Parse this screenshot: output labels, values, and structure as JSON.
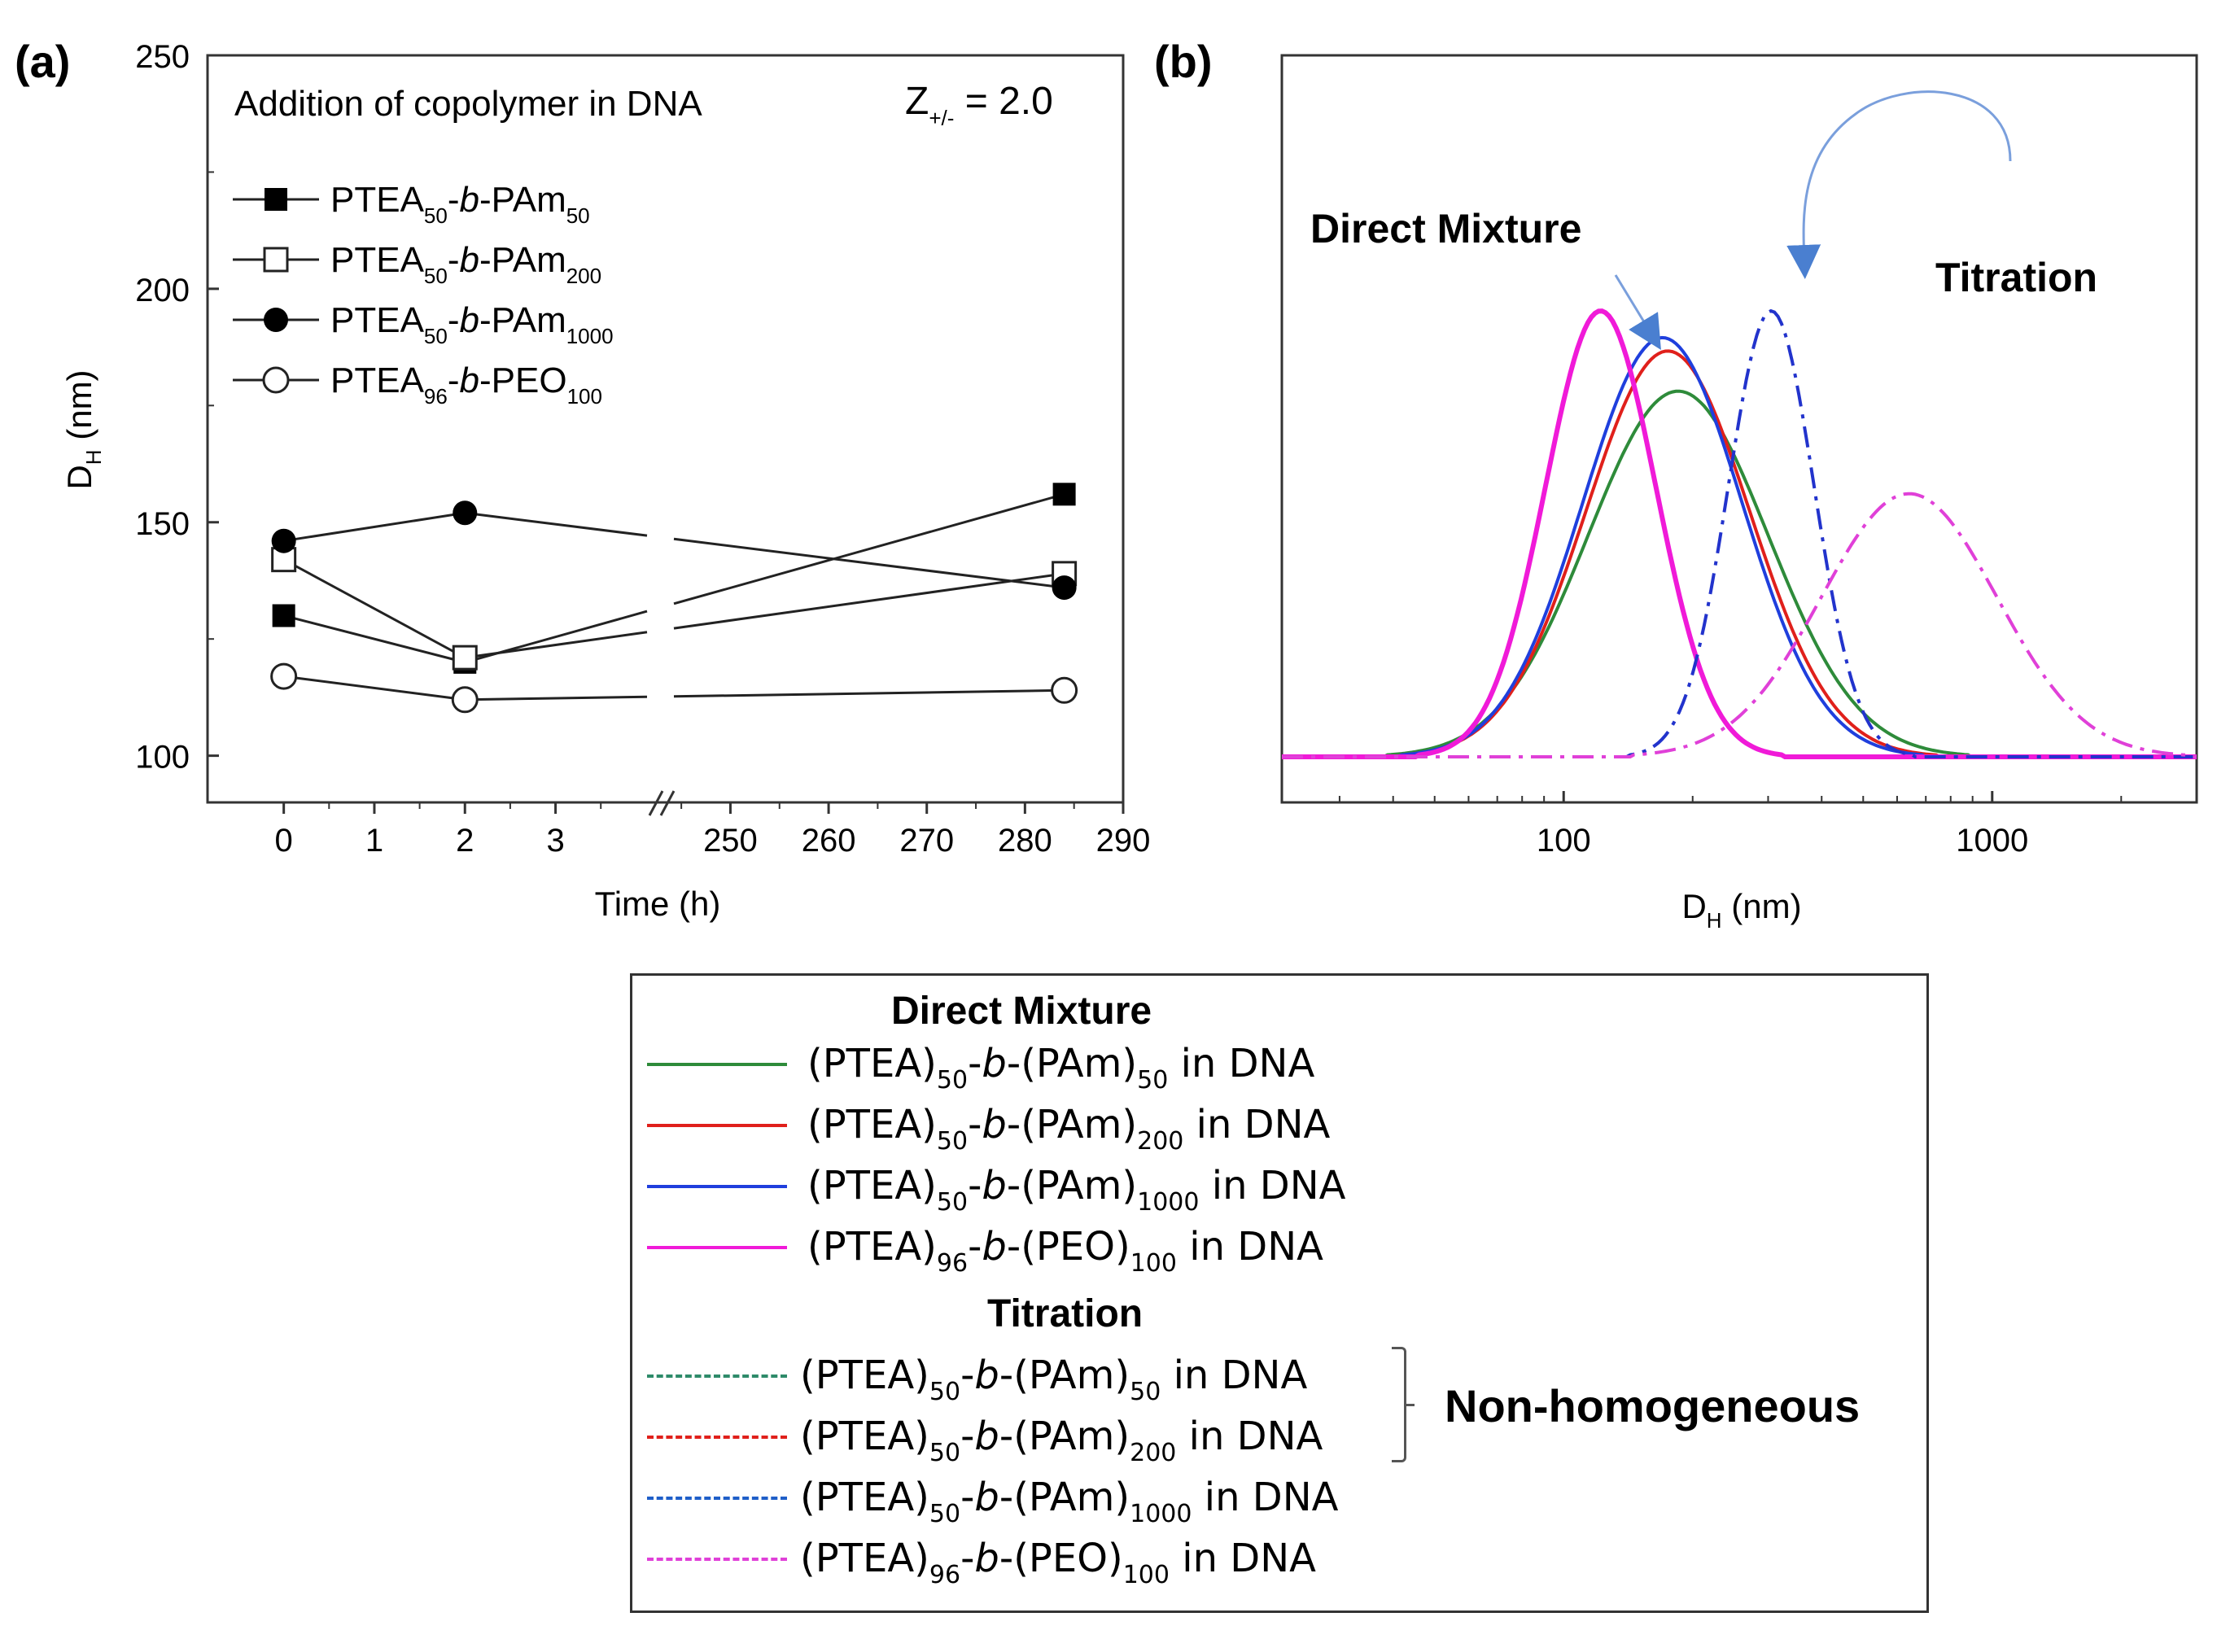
{
  "panel_labels": {
    "a": "(a)",
    "b": "(b)"
  },
  "chart_data": [
    {
      "type": "line",
      "panel": "(a)",
      "annotation": "Addition of copolymer in DNA",
      "ratio_label": {
        "main": "Z",
        "sub": "+/-",
        "rest": " = 2.0"
      },
      "xlabel": "Time (h)",
      "ylabel": {
        "main": "D",
        "sub": "H",
        "rest": " (nm)"
      },
      "ylim": [
        90,
        250
      ],
      "yticks": [
        100,
        150,
        200,
        250
      ],
      "x_segments": [
        {
          "range": [
            -0.5,
            4.1
          ],
          "ticks": [
            0,
            1,
            2,
            3
          ]
        },
        {
          "range": [
            243,
            290
          ],
          "ticks": [
            250,
            260,
            270,
            280,
            290
          ]
        }
      ],
      "axis_break": "//",
      "x": [
        0,
        2,
        284
      ],
      "series": [
        {
          "name": "PTEA50-b-PAm50",
          "label_parts": [
            "PTEA",
            "50",
            "-",
            "b",
            "-PAm",
            "50"
          ],
          "marker": "filled-square",
          "values": [
            130,
            120,
            156
          ]
        },
        {
          "name": "PTEA50-b-PAm200",
          "label_parts": [
            "PTEA",
            "50",
            "-",
            "b",
            "-PAm",
            "200"
          ],
          "marker": "open-square",
          "values": [
            142,
            121,
            139
          ]
        },
        {
          "name": "PTEA50-b-PAm1000",
          "label_parts": [
            "PTEA",
            "50",
            "-",
            "b",
            "-PAm",
            "1000"
          ],
          "marker": "filled-circle",
          "values": [
            146,
            152,
            136
          ]
        },
        {
          "name": "PTEA96-b-PEO100",
          "label_parts": [
            "PTEA",
            "96",
            "-",
            "b",
            "-PEO",
            "100"
          ],
          "marker": "open-circle",
          "values": [
            117,
            112,
            114
          ]
        }
      ]
    },
    {
      "type": "line",
      "panel": "(b)",
      "xscale": "log",
      "xlabel": {
        "main": "D",
        "sub": "H",
        "rest": " (nm)"
      },
      "xlim": [
        22,
        3000
      ],
      "xticks": [
        100,
        1000
      ],
      "annotations": {
        "direct": "Direct Mixture",
        "titration": "Titration"
      },
      "series": [
        {
          "name": "(PTEA)50-b-(PAm)50 in DNA",
          "group": "Direct Mixture",
          "color": "#2e8b3a",
          "style": "solid",
          "peak_x": 185,
          "peak_height": 0.82,
          "width": 0.44
        },
        {
          "name": "(PTEA)50-b-(PAm)200 in DNA",
          "group": "Direct Mixture",
          "color": "#e0201b",
          "style": "solid",
          "peak_x": 175,
          "peak_height": 0.91,
          "width": 0.4
        },
        {
          "name": "(PTEA)50-b-(PAm)1000 in DNA",
          "group": "Direct Mixture",
          "color": "#1f3fdd",
          "style": "solid",
          "peak_x": 170,
          "peak_height": 0.94,
          "width": 0.39
        },
        {
          "name": "(PTEA)96-b-(PEO)100 in DNA",
          "group": "Direct Mixture",
          "color": "#f01ad8",
          "style": "solid",
          "peak_x": 122,
          "peak_height": 1.0,
          "width": 0.27
        },
        {
          "name": "(PTEA)50-b-(PAm)1000 in DNA",
          "group": "Titration",
          "color": "#2233cc",
          "style": "dashdot",
          "peak_x": 305,
          "peak_height": 1.0,
          "width": 0.21
        },
        {
          "name": "(PTEA)96-b-(PEO)100 in DNA",
          "group": "Titration",
          "color": "#e040d8",
          "style": "dashdot",
          "peak_x": 640,
          "peak_height": 0.59,
          "width": 0.43
        }
      ]
    }
  ],
  "legend": {
    "direct_heading": "Direct Mixture",
    "titration_heading": "Titration",
    "non_homogeneous": "Non-homogeneous",
    "direct_items": [
      {
        "color": "#2e8b3a",
        "style": "solid",
        "p1": "(PTEA)",
        "s1": "50",
        "p2": "-",
        "it": "b",
        "p3": "-(PAm)",
        "s2": "50",
        "p4": " in DNA"
      },
      {
        "color": "#e0201b",
        "style": "solid",
        "p1": "(PTEA)",
        "s1": "50",
        "p2": "-",
        "it": "b",
        "p3": "-(PAm)",
        "s2": "200",
        "p4": " in DNA"
      },
      {
        "color": "#1f3fdd",
        "style": "solid",
        "p1": "(PTEA)",
        "s1": "50",
        "p2": "-",
        "it": "b",
        "p3": "-(PAm)",
        "s2": "1000",
        "p4": " in DNA"
      },
      {
        "color": "#f01ad8",
        "style": "solid",
        "p1": "(PTEA)",
        "s1": "96",
        "p2": "-",
        "it": "b",
        "p3": "-(PEO)",
        "s2": "100",
        "p4": " in DNA"
      }
    ],
    "titration_items": [
      {
        "color": "#2e8b6a",
        "style": "dashdot",
        "p1": "(PTEA)",
        "s1": "50",
        "p2": "-",
        "it": "b",
        "p3": "-(PAm)",
        "s2": "50",
        "p4": " in DNA"
      },
      {
        "color": "#e0201b",
        "style": "dashdot",
        "p1": "(PTEA)",
        "s1": "50",
        "p2": "-",
        "it": "b",
        "p3": "-(PAm)",
        "s2": "200",
        "p4": " in DNA"
      },
      {
        "color": "#1f5fc8",
        "style": "dashdot",
        "p1": "(PTEA)",
        "s1": "50",
        "p2": "-",
        "it": "b",
        "p3": "-(PAm)",
        "s2": "1000",
        "p4": " in DNA"
      },
      {
        "color": "#e040d8",
        "style": "dashdot",
        "p1": "(PTEA)",
        "s1": "96",
        "p2": "-",
        "it": "b",
        "p3": "-(PEO)",
        "s2": "100",
        "p4": " in DNA"
      }
    ]
  }
}
